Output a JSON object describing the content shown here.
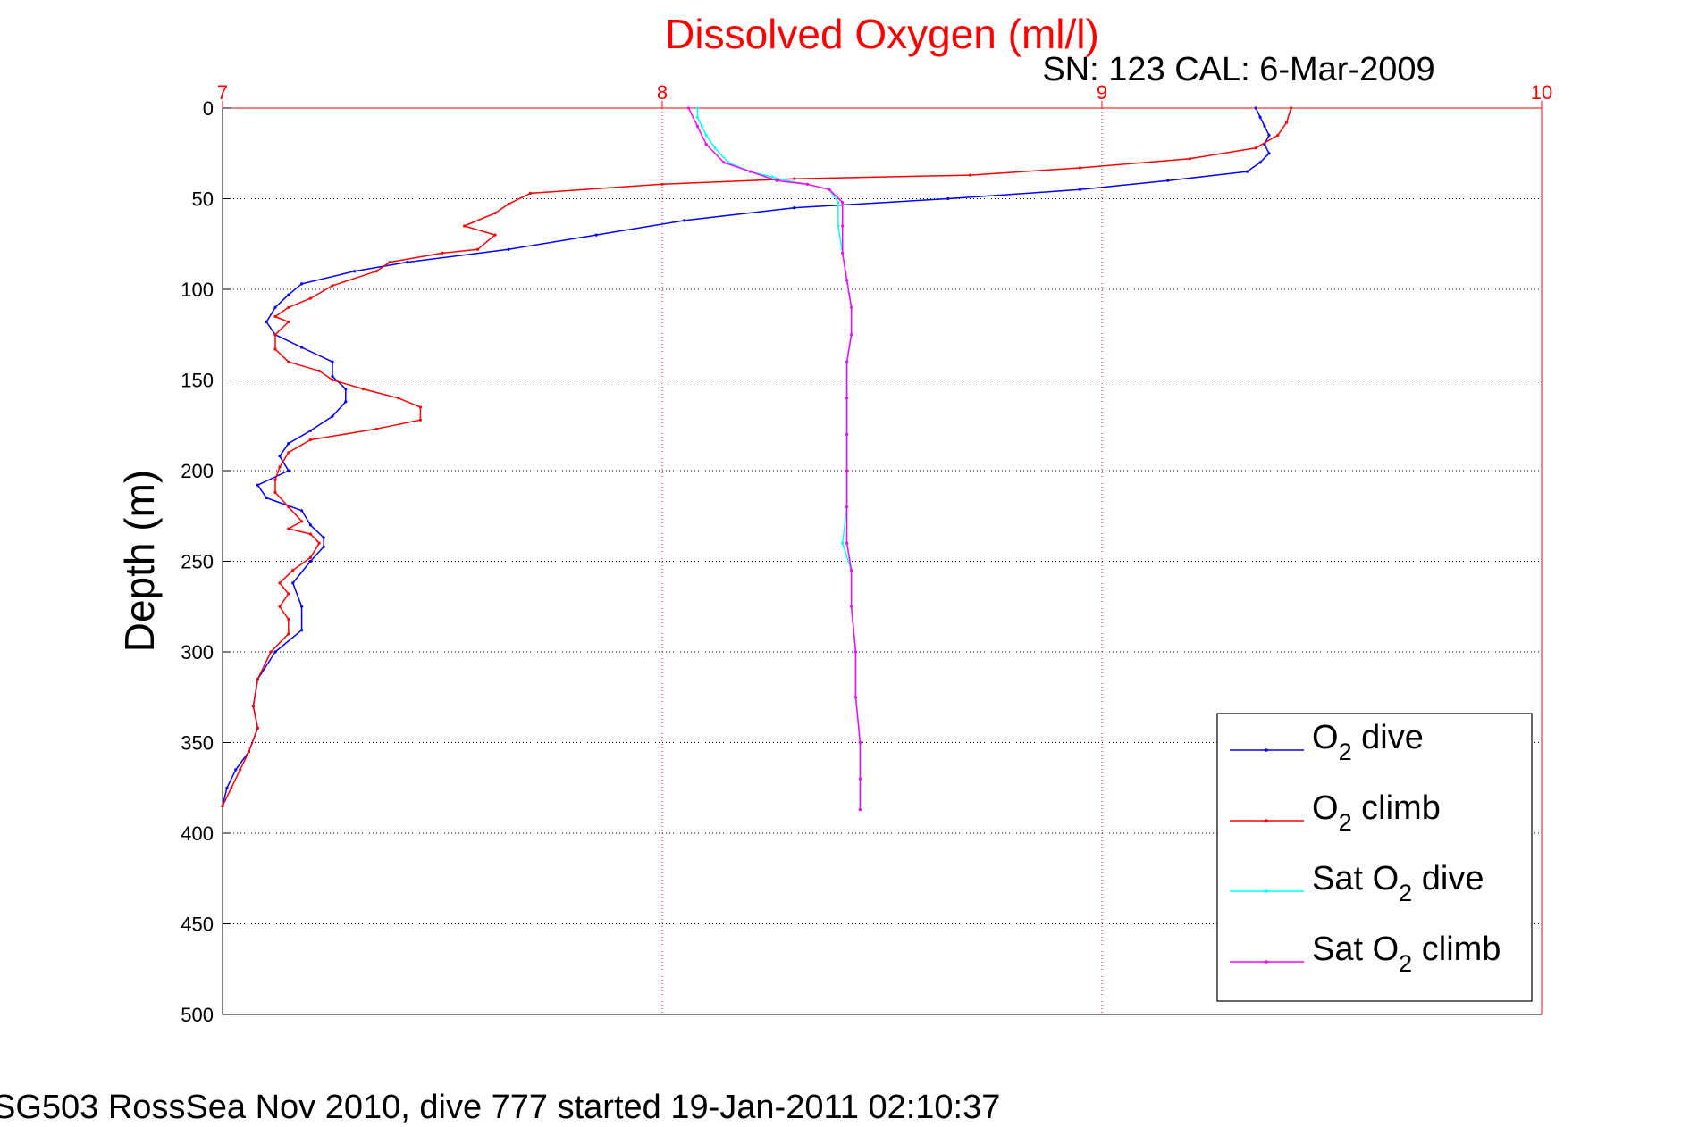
{
  "chart_data": {
    "type": "line",
    "title": "Dissolved Oxygen (ml/l)",
    "title_color": "#ff0000",
    "subtitle": "SN: 123  CAL: 6-Mar-2009",
    "footer": "SG503 RossSea Nov 2010, dive 777 started 19-Jan-2011 02:10:37",
    "ylabel": "Depth (m)",
    "xlim": [
      7,
      10
    ],
    "ylim": [
      0,
      500
    ],
    "y_reversed": true,
    "x_axis_position": "top",
    "x_ticks": [
      "7",
      "8",
      "9",
      "10"
    ],
    "y_ticks": [
      "0",
      "50",
      "100",
      "150",
      "200",
      "250",
      "300",
      "350",
      "400",
      "450",
      "500"
    ],
    "x_tick_color": "#ff0000",
    "grid": true,
    "legend_position": "bottom-right",
    "series": [
      {
        "name": "O2 dive",
        "legend_main": "O",
        "legend_sub": "2",
        "legend_rest": " dive",
        "color": "#0000ff",
        "points": [
          [
            9.35,
            0
          ],
          [
            9.36,
            5
          ],
          [
            9.37,
            10
          ],
          [
            9.38,
            15
          ],
          [
            9.37,
            20
          ],
          [
            9.38,
            25
          ],
          [
            9.36,
            30
          ],
          [
            9.33,
            35
          ],
          [
            9.15,
            40
          ],
          [
            8.95,
            45
          ],
          [
            8.65,
            50
          ],
          [
            8.3,
            55
          ],
          [
            8.05,
            62
          ],
          [
            7.85,
            70
          ],
          [
            7.65,
            78
          ],
          [
            7.42,
            85
          ],
          [
            7.3,
            90
          ],
          [
            7.18,
            97
          ],
          [
            7.15,
            103
          ],
          [
            7.12,
            110
          ],
          [
            7.1,
            118
          ],
          [
            7.12,
            125
          ],
          [
            7.18,
            132
          ],
          [
            7.25,
            140
          ],
          [
            7.25,
            148
          ],
          [
            7.28,
            155
          ],
          [
            7.28,
            162
          ],
          [
            7.25,
            170
          ],
          [
            7.2,
            178
          ],
          [
            7.15,
            185
          ],
          [
            7.13,
            192
          ],
          [
            7.15,
            200
          ],
          [
            7.08,
            208
          ],
          [
            7.1,
            215
          ],
          [
            7.18,
            222
          ],
          [
            7.2,
            230
          ],
          [
            7.23,
            237
          ],
          [
            7.23,
            242
          ],
          [
            7.2,
            250
          ],
          [
            7.16,
            262
          ],
          [
            7.18,
            275
          ],
          [
            7.18,
            288
          ],
          [
            7.12,
            300
          ],
          [
            7.08,
            315
          ],
          [
            7.07,
            330
          ],
          [
            7.08,
            342
          ],
          [
            7.06,
            355
          ],
          [
            7.03,
            365
          ],
          [
            7.01,
            375
          ],
          [
            7.0,
            385
          ]
        ]
      },
      {
        "name": "O2 climb",
        "legend_main": "O",
        "legend_sub": "2",
        "legend_rest": " climb",
        "color": "#ff0000",
        "points": [
          [
            7.0,
            385
          ],
          [
            7.02,
            375
          ],
          [
            7.04,
            365
          ],
          [
            7.06,
            355
          ],
          [
            7.08,
            342
          ],
          [
            7.07,
            330
          ],
          [
            7.08,
            315
          ],
          [
            7.11,
            300
          ],
          [
            7.15,
            290
          ],
          [
            7.15,
            282
          ],
          [
            7.13,
            275
          ],
          [
            7.15,
            268
          ],
          [
            7.13,
            262
          ],
          [
            7.16,
            255
          ],
          [
            7.2,
            248
          ],
          [
            7.22,
            240
          ],
          [
            7.2,
            235
          ],
          [
            7.15,
            232
          ],
          [
            7.18,
            228
          ],
          [
            7.15,
            220
          ],
          [
            7.12,
            212
          ],
          [
            7.12,
            205
          ],
          [
            7.13,
            198
          ],
          [
            7.15,
            190
          ],
          [
            7.2,
            183
          ],
          [
            7.35,
            177
          ],
          [
            7.45,
            172
          ],
          [
            7.45,
            165
          ],
          [
            7.4,
            160
          ],
          [
            7.32,
            155
          ],
          [
            7.25,
            150
          ],
          [
            7.22,
            145
          ],
          [
            7.15,
            140
          ],
          [
            7.12,
            133
          ],
          [
            7.12,
            125
          ],
          [
            7.15,
            118
          ],
          [
            7.12,
            115
          ],
          [
            7.15,
            110
          ],
          [
            7.2,
            105
          ],
          [
            7.25,
            98
          ],
          [
            7.35,
            90
          ],
          [
            7.38,
            85
          ],
          [
            7.5,
            80
          ],
          [
            7.58,
            78
          ],
          [
            7.62,
            70
          ],
          [
            7.55,
            65
          ],
          [
            7.62,
            58
          ],
          [
            7.65,
            53
          ],
          [
            7.7,
            47
          ],
          [
            8.0,
            42
          ],
          [
            8.3,
            39
          ],
          [
            8.7,
            37
          ],
          [
            8.95,
            33
          ],
          [
            9.2,
            28
          ],
          [
            9.35,
            22
          ],
          [
            9.4,
            15
          ],
          [
            9.42,
            8
          ],
          [
            9.43,
            0
          ]
        ]
      },
      {
        "name": "Sat O2 dive",
        "legend_main": "Sat O",
        "legend_sub": "2",
        "legend_rest": " dive",
        "color": "#00ffff",
        "points": [
          [
            8.08,
            0
          ],
          [
            8.08,
            5
          ],
          [
            8.09,
            10
          ],
          [
            8.1,
            15
          ],
          [
            8.12,
            22
          ],
          [
            8.15,
            30
          ],
          [
            8.2,
            35
          ],
          [
            8.25,
            38
          ],
          [
            8.28,
            40
          ],
          [
            8.33,
            42
          ],
          [
            8.38,
            45
          ],
          [
            8.4,
            52
          ],
          [
            8.4,
            65
          ],
          [
            8.41,
            80
          ],
          [
            8.42,
            95
          ],
          [
            8.43,
            110
          ],
          [
            8.43,
            125
          ],
          [
            8.42,
            140
          ],
          [
            8.42,
            160
          ],
          [
            8.42,
            180
          ],
          [
            8.42,
            200
          ],
          [
            8.42,
            220
          ],
          [
            8.41,
            240
          ],
          [
            8.43,
            255
          ],
          [
            8.43,
            275
          ],
          [
            8.44,
            300
          ],
          [
            8.44,
            325
          ],
          [
            8.45,
            350
          ],
          [
            8.45,
            370
          ],
          [
            8.45,
            387
          ]
        ]
      },
      {
        "name": "Sat O2 climb",
        "legend_main": "Sat O",
        "legend_sub": "2",
        "legend_rest": " climb",
        "color": "#ff00ff",
        "points": [
          [
            8.45,
            387
          ],
          [
            8.45,
            370
          ],
          [
            8.45,
            350
          ],
          [
            8.44,
            325
          ],
          [
            8.44,
            300
          ],
          [
            8.43,
            275
          ],
          [
            8.43,
            255
          ],
          [
            8.42,
            240
          ],
          [
            8.42,
            220
          ],
          [
            8.42,
            200
          ],
          [
            8.42,
            180
          ],
          [
            8.42,
            160
          ],
          [
            8.42,
            140
          ],
          [
            8.43,
            125
          ],
          [
            8.43,
            110
          ],
          [
            8.42,
            95
          ],
          [
            8.41,
            80
          ],
          [
            8.41,
            65
          ],
          [
            8.41,
            52
          ],
          [
            8.38,
            45
          ],
          [
            8.33,
            42
          ],
          [
            8.26,
            40
          ],
          [
            8.2,
            35
          ],
          [
            8.14,
            30
          ],
          [
            8.1,
            20
          ],
          [
            8.08,
            10
          ],
          [
            8.06,
            0
          ]
        ]
      }
    ]
  }
}
